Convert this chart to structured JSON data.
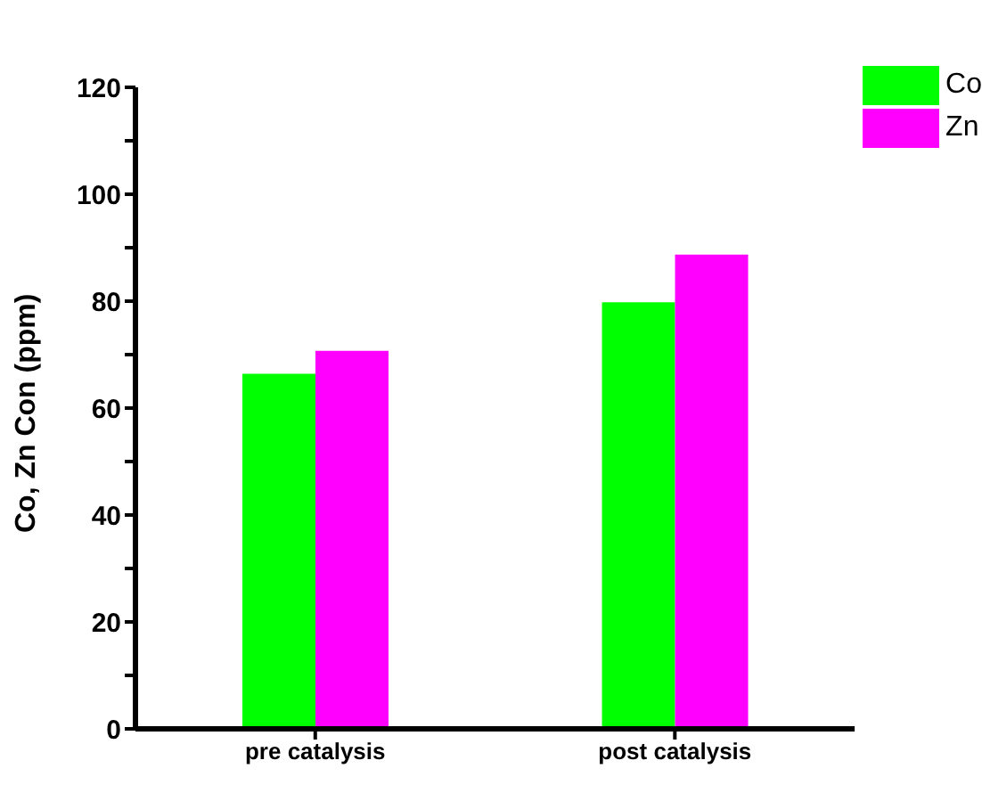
{
  "chart_data": {
    "type": "bar",
    "ylabel": "Co, Zn Con (ppm)",
    "categories": [
      "pre catalysis",
      "post catalysis"
    ],
    "series": [
      {
        "name": "Co",
        "color": "#00ff00",
        "values": [
          66.4,
          79.8
        ]
      },
      {
        "name": "Zn",
        "color": "#ff00ff",
        "values": [
          70.7,
          88.7
        ]
      }
    ],
    "ylim": [
      0,
      120
    ],
    "yticks": [
      0,
      {
        "value": 10,
        "label": null
      },
      20,
      {
        "value": 30,
        "label": null
      },
      40,
      {
        "value": 50,
        "label": null
      },
      60,
      {
        "value": 70,
        "label": null
      },
      80,
      {
        "value": 90,
        "label": null
      },
      100,
      {
        "value": 110,
        "label": null
      },
      120
    ],
    "grid": false,
    "legend": "top right"
  }
}
